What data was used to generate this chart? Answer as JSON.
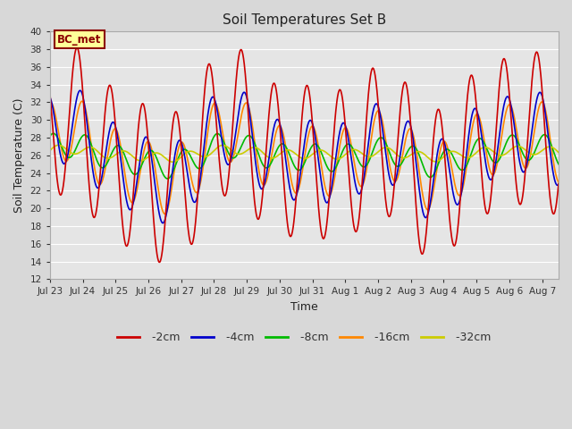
{
  "title": "Soil Temperatures Set B",
  "xlabel": "Time",
  "ylabel": "Soil Temperature (C)",
  "ylim": [
    12,
    40
  ],
  "total_days": 15.5,
  "annotation": "BC_met",
  "bg_color": "#e5e5e5",
  "grid_color": "#ffffff",
  "fig_bg": "#d8d8d8",
  "series": {
    "-2cm": {
      "color": "#cc0000",
      "lw": 1.2
    },
    "-4cm": {
      "color": "#0000cc",
      "lw": 1.2
    },
    "-8cm": {
      "color": "#00bb00",
      "lw": 1.2
    },
    "-16cm": {
      "color": "#ff8800",
      "lw": 1.2
    },
    "-32cm": {
      "color": "#cccc00",
      "lw": 1.2
    }
  },
  "xtick_labels": [
    "Jul 23",
    "Jul 24",
    "Jul 25",
    "Jul 26",
    "Jul 27",
    "Jul 28",
    "Jul 29",
    "Jul 30",
    "Jul 31",
    "Aug 1",
    "Aug 2",
    "Aug 3",
    "Aug 4",
    "Aug 5",
    "Aug 6",
    "Aug 7"
  ],
  "ytick_values": [
    12,
    14,
    16,
    18,
    20,
    22,
    24,
    26,
    28,
    30,
    32,
    34,
    36,
    38,
    40
  ]
}
